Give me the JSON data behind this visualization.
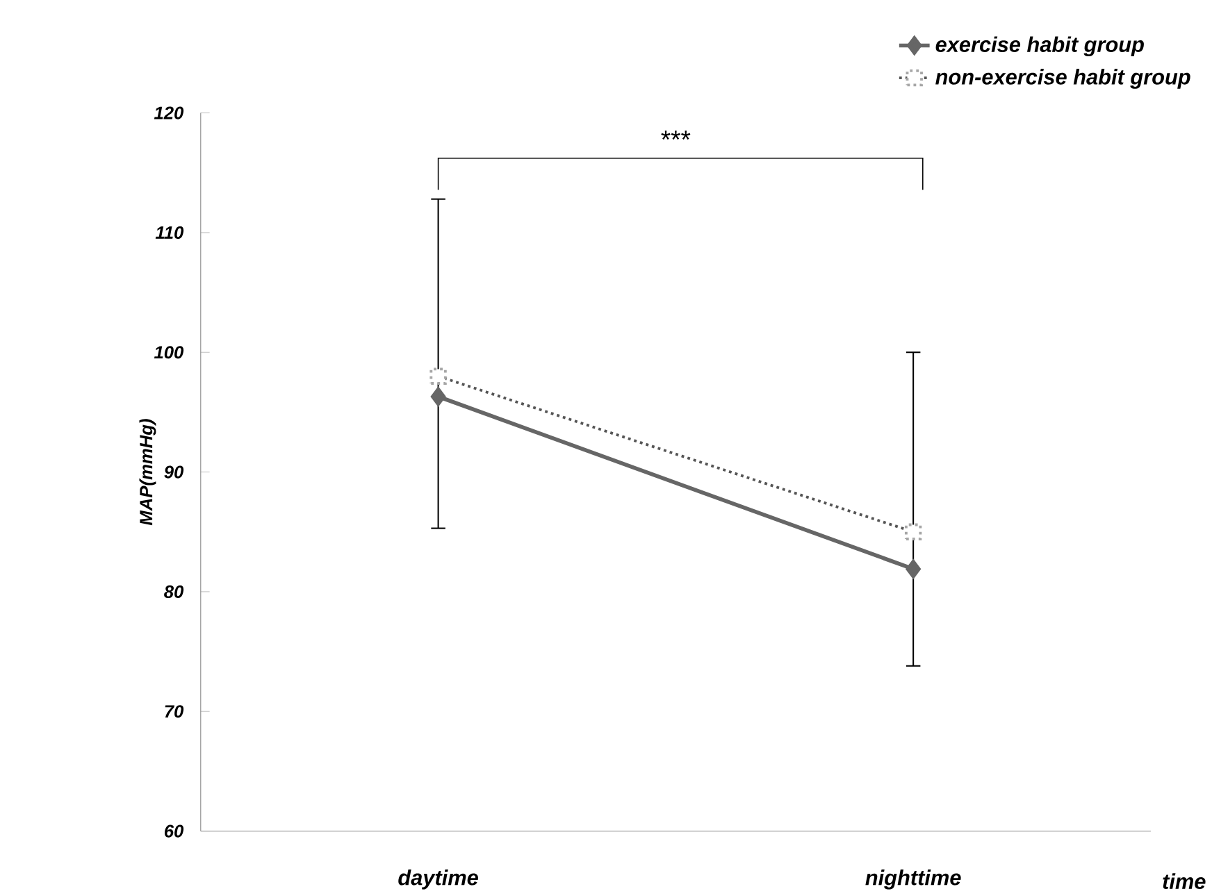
{
  "chart_data": {
    "type": "line",
    "ylabel": "MAP(mmHg)",
    "xlabel": "time",
    "categories": [
      "daytime",
      "nighttime"
    ],
    "series": [
      {
        "name": "exercise habit group",
        "color": "#666666",
        "values": [
          96.3,
          81.9
        ],
        "marker": "diamond",
        "line_style": "solid",
        "errors": [
          [
            85.3,
            112.8
          ],
          [
            73.8,
            100
          ]
        ]
      },
      {
        "name": "non-exercise habit group",
        "color": "#555555",
        "values": [
          98,
          85
        ],
        "marker": "square",
        "line_style": "dotted"
      }
    ],
    "ylim": [
      60,
      120
    ],
    "yticks": [
      60,
      70,
      80,
      90,
      100,
      110,
      120
    ],
    "legend": "top right",
    "annotations": [
      "***"
    ]
  }
}
